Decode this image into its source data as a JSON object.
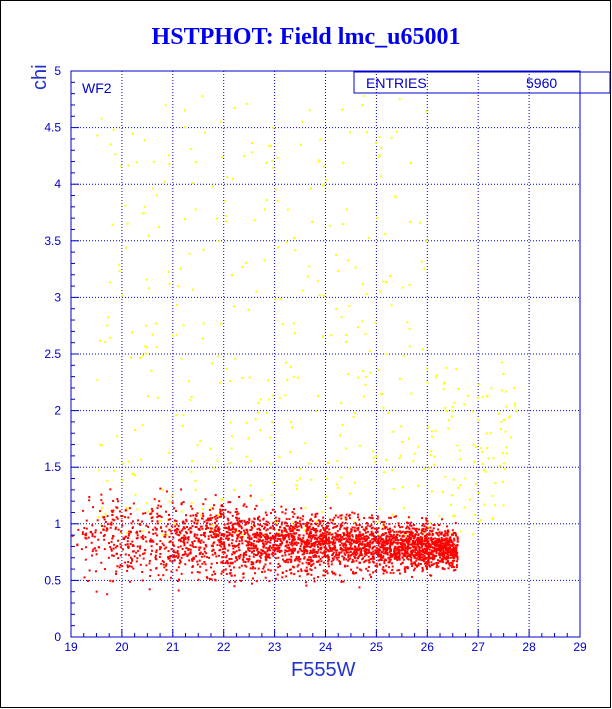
{
  "title": "HSTPHOT: Field lmc_u65001",
  "panel_label": "WF2",
  "stats": {
    "label": "ENTRIES",
    "value": "5960"
  },
  "colors": {
    "axes": "#0000cc",
    "grid": "#0000cc",
    "text": "#0000ee",
    "series_main": "#ff0000",
    "series_outlier": "#ffff00"
  },
  "chart_data": {
    "type": "scatter",
    "title": "HSTPHOT: Field lmc_u65001",
    "xlabel": "F555W",
    "ylabel": "chi",
    "xlim": [
      19,
      29
    ],
    "ylim": [
      0,
      5
    ],
    "xticks": [
      "19",
      "20",
      "21",
      "22",
      "23",
      "24",
      "25",
      "26",
      "27",
      "28",
      "29"
    ],
    "yticks": [
      "0",
      "0.5",
      "1",
      "1.5",
      "2",
      "2.5",
      "3",
      "3.5",
      "4",
      "4.5",
      "5"
    ],
    "grid": true,
    "entries": 5960,
    "series": [
      {
        "color": "#ff0000",
        "approx_region": {
          "x_range": [
            19,
            26.6
          ],
          "chi_center": 0.9,
          "chi_spread": 0.35
        }
      },
      {
        "color": "#ffff00",
        "approx_region": {
          "x_range": [
            19.5,
            27.8
          ],
          "chi_range": [
            0.5,
            4.8
          ]
        }
      }
    ]
  }
}
